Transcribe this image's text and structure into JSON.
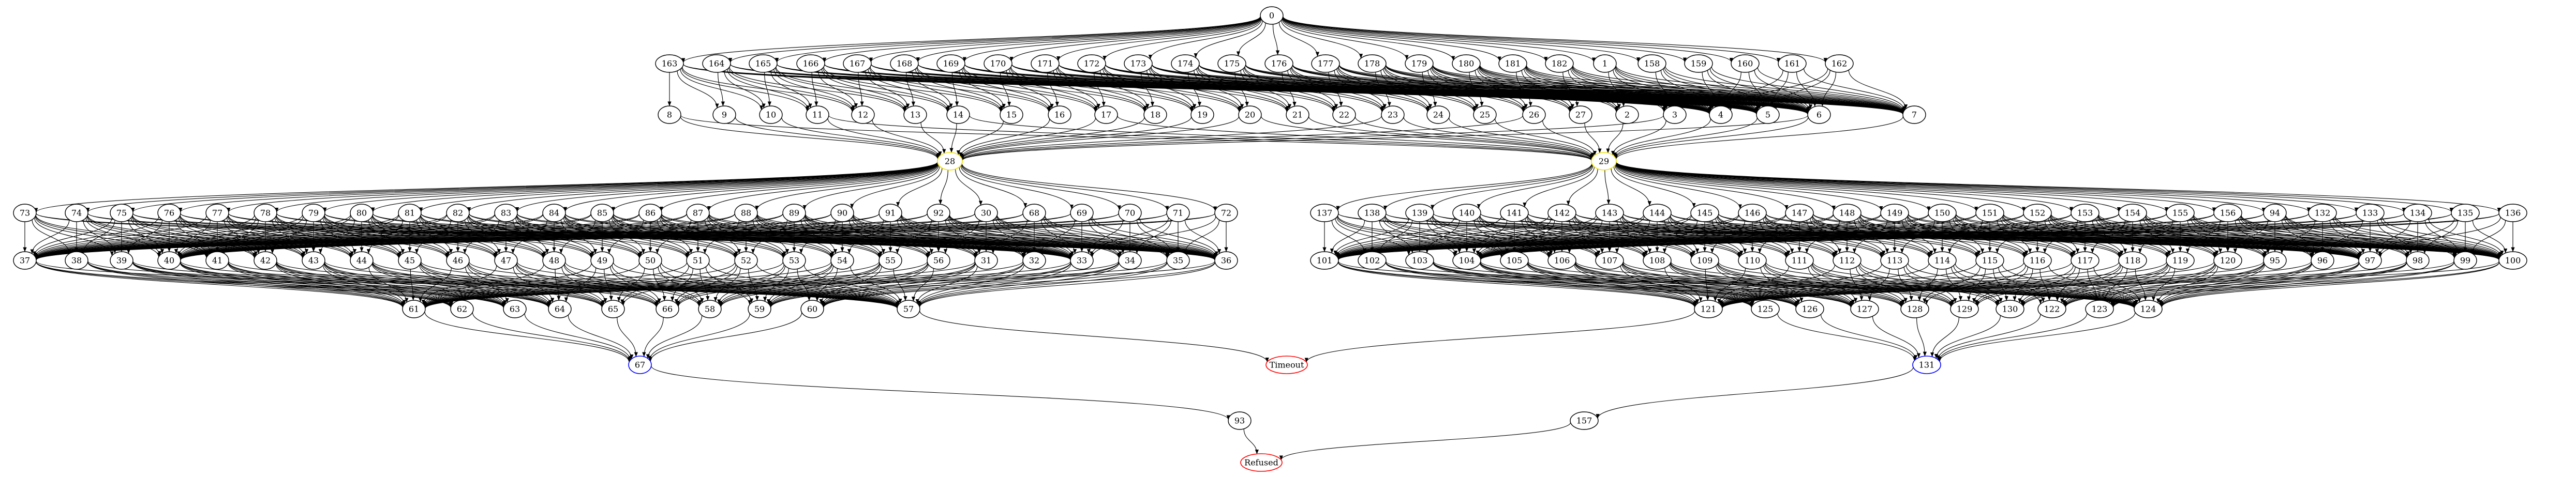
{
  "graph": {
    "nodes": [
      {
        "id": "0",
        "label": "0"
      },
      {
        "id": "163",
        "label": "163"
      },
      {
        "id": "164",
        "label": "164"
      },
      {
        "id": "165",
        "label": "165"
      },
      {
        "id": "166",
        "label": "166"
      },
      {
        "id": "167",
        "label": "167"
      },
      {
        "id": "168",
        "label": "168"
      },
      {
        "id": "169",
        "label": "169"
      },
      {
        "id": "170",
        "label": "170"
      },
      {
        "id": "171",
        "label": "171"
      },
      {
        "id": "172",
        "label": "172"
      },
      {
        "id": "173",
        "label": "173"
      },
      {
        "id": "174",
        "label": "174"
      },
      {
        "id": "175",
        "label": "175"
      },
      {
        "id": "176",
        "label": "176"
      },
      {
        "id": "177",
        "label": "177"
      },
      {
        "id": "178",
        "label": "178"
      },
      {
        "id": "179",
        "label": "179"
      },
      {
        "id": "180",
        "label": "180"
      },
      {
        "id": "181",
        "label": "181"
      },
      {
        "id": "182",
        "label": "182"
      },
      {
        "id": "1",
        "label": "1"
      },
      {
        "id": "158",
        "label": "158"
      },
      {
        "id": "159",
        "label": "159"
      },
      {
        "id": "160",
        "label": "160"
      },
      {
        "id": "161",
        "label": "161"
      },
      {
        "id": "162",
        "label": "162"
      },
      {
        "id": "8",
        "label": "8"
      },
      {
        "id": "9",
        "label": "9"
      },
      {
        "id": "10",
        "label": "10"
      },
      {
        "id": "11",
        "label": "11"
      },
      {
        "id": "12",
        "label": "12"
      },
      {
        "id": "13",
        "label": "13"
      },
      {
        "id": "14",
        "label": "14"
      },
      {
        "id": "15",
        "label": "15"
      },
      {
        "id": "16",
        "label": "16"
      },
      {
        "id": "17",
        "label": "17"
      },
      {
        "id": "18",
        "label": "18"
      },
      {
        "id": "19",
        "label": "19"
      },
      {
        "id": "20",
        "label": "20"
      },
      {
        "id": "21",
        "label": "21"
      },
      {
        "id": "22",
        "label": "22"
      },
      {
        "id": "23",
        "label": "23"
      },
      {
        "id": "24",
        "label": "24"
      },
      {
        "id": "25",
        "label": "25"
      },
      {
        "id": "26",
        "label": "26"
      },
      {
        "id": "27",
        "label": "27"
      },
      {
        "id": "2",
        "label": "2"
      },
      {
        "id": "3",
        "label": "3"
      },
      {
        "id": "4",
        "label": "4"
      },
      {
        "id": "5",
        "label": "5"
      },
      {
        "id": "6",
        "label": "6"
      },
      {
        "id": "7",
        "label": "7"
      },
      {
        "id": "28",
        "label": "28"
      },
      {
        "id": "29",
        "label": "29"
      },
      {
        "id": "73",
        "label": "73"
      },
      {
        "id": "74",
        "label": "74"
      },
      {
        "id": "75",
        "label": "75"
      },
      {
        "id": "76",
        "label": "76"
      },
      {
        "id": "77",
        "label": "77"
      },
      {
        "id": "78",
        "label": "78"
      },
      {
        "id": "79",
        "label": "79"
      },
      {
        "id": "80",
        "label": "80"
      },
      {
        "id": "81",
        "label": "81"
      },
      {
        "id": "82",
        "label": "82"
      },
      {
        "id": "83",
        "label": "83"
      },
      {
        "id": "84",
        "label": "84"
      },
      {
        "id": "85",
        "label": "85"
      },
      {
        "id": "86",
        "label": "86"
      },
      {
        "id": "87",
        "label": "87"
      },
      {
        "id": "88",
        "label": "88"
      },
      {
        "id": "89",
        "label": "89"
      },
      {
        "id": "90",
        "label": "90"
      },
      {
        "id": "91",
        "label": "91"
      },
      {
        "id": "92",
        "label": "92"
      },
      {
        "id": "30",
        "label": "30"
      },
      {
        "id": "68",
        "label": "68"
      },
      {
        "id": "69",
        "label": "69"
      },
      {
        "id": "70",
        "label": "70"
      },
      {
        "id": "71",
        "label": "71"
      },
      {
        "id": "72",
        "label": "72"
      },
      {
        "id": "137",
        "label": "137"
      },
      {
        "id": "138",
        "label": "138"
      },
      {
        "id": "139",
        "label": "139"
      },
      {
        "id": "140",
        "label": "140"
      },
      {
        "id": "141",
        "label": "141"
      },
      {
        "id": "142",
        "label": "142"
      },
      {
        "id": "143",
        "label": "143"
      },
      {
        "id": "144",
        "label": "144"
      },
      {
        "id": "145",
        "label": "145"
      },
      {
        "id": "146",
        "label": "146"
      },
      {
        "id": "147",
        "label": "147"
      },
      {
        "id": "148",
        "label": "148"
      },
      {
        "id": "149",
        "label": "149"
      },
      {
        "id": "150",
        "label": "150"
      },
      {
        "id": "151",
        "label": "151"
      },
      {
        "id": "152",
        "label": "152"
      },
      {
        "id": "153",
        "label": "153"
      },
      {
        "id": "154",
        "label": "154"
      },
      {
        "id": "155",
        "label": "155"
      },
      {
        "id": "156",
        "label": "156"
      },
      {
        "id": "94",
        "label": "94"
      },
      {
        "id": "132",
        "label": "132"
      },
      {
        "id": "133",
        "label": "133"
      },
      {
        "id": "134",
        "label": "134"
      },
      {
        "id": "135",
        "label": "135"
      },
      {
        "id": "136",
        "label": "136"
      },
      {
        "id": "37",
        "label": "37"
      },
      {
        "id": "38",
        "label": "38"
      },
      {
        "id": "39",
        "label": "39"
      },
      {
        "id": "40",
        "label": "40"
      },
      {
        "id": "41",
        "label": "41"
      },
      {
        "id": "42",
        "label": "42"
      },
      {
        "id": "43",
        "label": "43"
      },
      {
        "id": "44",
        "label": "44"
      },
      {
        "id": "45",
        "label": "45"
      },
      {
        "id": "46",
        "label": "46"
      },
      {
        "id": "47",
        "label": "47"
      },
      {
        "id": "48",
        "label": "48"
      },
      {
        "id": "49",
        "label": "49"
      },
      {
        "id": "50",
        "label": "50"
      },
      {
        "id": "51",
        "label": "51"
      },
      {
        "id": "52",
        "label": "52"
      },
      {
        "id": "53",
        "label": "53"
      },
      {
        "id": "54",
        "label": "54"
      },
      {
        "id": "55",
        "label": "55"
      },
      {
        "id": "56",
        "label": "56"
      },
      {
        "id": "31",
        "label": "31"
      },
      {
        "id": "32",
        "label": "32"
      },
      {
        "id": "33",
        "label": "33"
      },
      {
        "id": "34",
        "label": "34"
      },
      {
        "id": "35",
        "label": "35"
      },
      {
        "id": "36",
        "label": "36"
      },
      {
        "id": "101",
        "label": "101"
      },
      {
        "id": "102",
        "label": "102"
      },
      {
        "id": "103",
        "label": "103"
      },
      {
        "id": "104",
        "label": "104"
      },
      {
        "id": "105",
        "label": "105"
      },
      {
        "id": "106",
        "label": "106"
      },
      {
        "id": "107",
        "label": "107"
      },
      {
        "id": "108",
        "label": "108"
      },
      {
        "id": "109",
        "label": "109"
      },
      {
        "id": "110",
        "label": "110"
      },
      {
        "id": "111",
        "label": "111"
      },
      {
        "id": "112",
        "label": "112"
      },
      {
        "id": "113",
        "label": "113"
      },
      {
        "id": "114",
        "label": "114"
      },
      {
        "id": "115",
        "label": "115"
      },
      {
        "id": "116",
        "label": "116"
      },
      {
        "id": "117",
        "label": "117"
      },
      {
        "id": "118",
        "label": "118"
      },
      {
        "id": "119",
        "label": "119"
      },
      {
        "id": "120",
        "label": "120"
      },
      {
        "id": "95",
        "label": "95"
      },
      {
        "id": "96",
        "label": "96"
      },
      {
        "id": "97",
        "label": "97"
      },
      {
        "id": "98",
        "label": "98"
      },
      {
        "id": "99",
        "label": "99"
      },
      {
        "id": "100",
        "label": "100"
      },
      {
        "id": "61",
        "label": "61"
      },
      {
        "id": "62",
        "label": "62"
      },
      {
        "id": "63",
        "label": "63"
      },
      {
        "id": "64",
        "label": "64"
      },
      {
        "id": "65",
        "label": "65"
      },
      {
        "id": "66",
        "label": "66"
      },
      {
        "id": "58",
        "label": "58"
      },
      {
        "id": "59",
        "label": "59"
      },
      {
        "id": "60",
        "label": "60"
      },
      {
        "id": "57",
        "label": "57"
      },
      {
        "id": "121",
        "label": "121"
      },
      {
        "id": "125",
        "label": "125"
      },
      {
        "id": "126",
        "label": "126"
      },
      {
        "id": "127",
        "label": "127"
      },
      {
        "id": "128",
        "label": "128"
      },
      {
        "id": "129",
        "label": "129"
      },
      {
        "id": "130",
        "label": "130"
      },
      {
        "id": "122",
        "label": "122"
      },
      {
        "id": "123",
        "label": "123"
      },
      {
        "id": "124",
        "label": "124"
      },
      {
        "id": "67",
        "label": "67"
      },
      {
        "id": "Timeout",
        "label": "Timeout"
      },
      {
        "id": "131",
        "label": "131"
      },
      {
        "id": "93",
        "label": "93"
      },
      {
        "id": "157",
        "label": "157"
      },
      {
        "id": "Refused",
        "label": "Refused"
      }
    ],
    "highlight": {
      "yellow": [
        "28",
        "29"
      ],
      "blue": [
        "67",
        "131"
      ],
      "red": [
        "Timeout",
        "Refused"
      ]
    }
  }
}
